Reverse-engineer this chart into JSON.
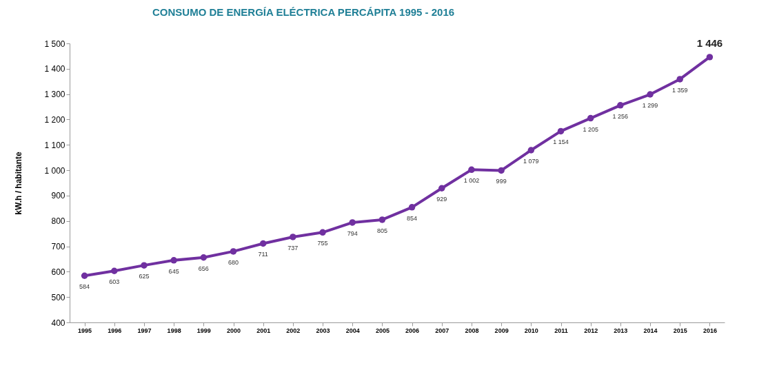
{
  "chart_data": {
    "type": "line",
    "title": "CONSUMO DE ENERGÍA ELÉCTRICA PERCÁPITA 1995 - 2016",
    "ylabel": "kW.h / habitante",
    "categories": [
      "1995",
      "1996",
      "1997",
      "1998",
      "1999",
      "2000",
      "2001",
      "2002",
      "2003",
      "2004",
      "2005",
      "2006",
      "2007",
      "2008",
      "2009",
      "2010",
      "2011",
      "2012",
      "2013",
      "2014",
      "2015",
      "2016"
    ],
    "series": [
      {
        "color": "#7030a0",
        "values": [
          584,
          603,
          625,
          645,
          656,
          680,
          711,
          737,
          755,
          794,
          805,
          854,
          929,
          1002,
          999,
          1079,
          1154,
          1205,
          1256,
          1299,
          1359,
          1446
        ]
      }
    ],
    "value_labels": [
      "584",
      "603",
      "625",
      "645",
      "656",
      "680",
      "711",
      "737",
      "755",
      "794",
      "805",
      "854",
      "929",
      "1 002",
      "999",
      "1 079",
      "1 154",
      "1 205",
      "1 256",
      "1 299",
      "1 359",
      "1 446"
    ],
    "ylim": [
      400,
      1500
    ],
    "yticks": [
      400,
      500,
      600,
      700,
      800,
      900,
      {
        "value": 1000,
        "label": "1 000"
      },
      {
        "value": 1100,
        "label": "1 100"
      },
      {
        "value": 1200,
        "label": "1 200"
      },
      {
        "value": 1300,
        "label": "1 300"
      },
      {
        "value": 1400,
        "label": "1 400"
      },
      {
        "value": 1500,
        "label": "1 500"
      }
    ],
    "grid": false,
    "marker": "circle",
    "line_style": "solid"
  }
}
